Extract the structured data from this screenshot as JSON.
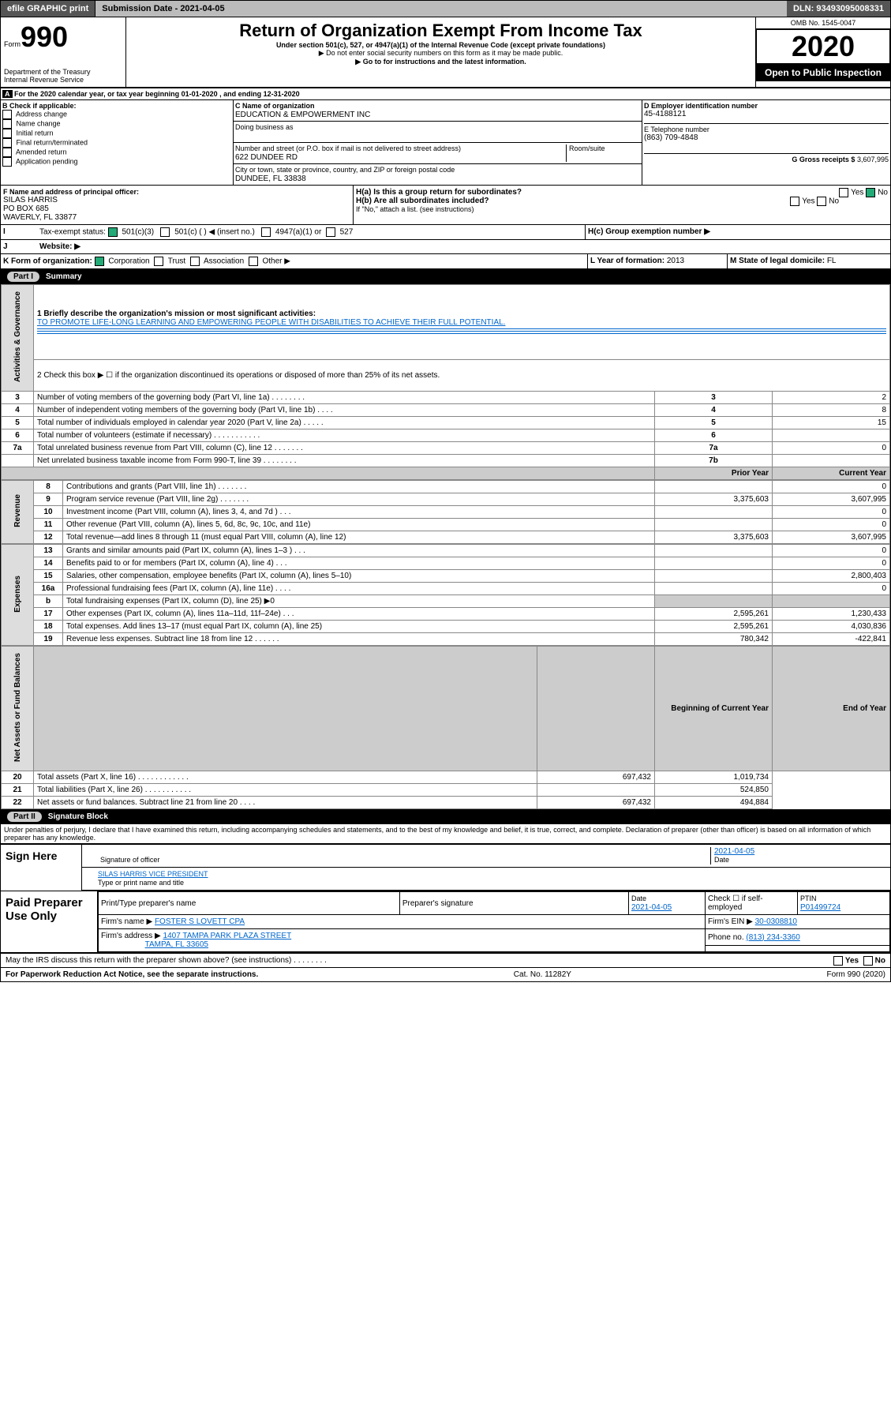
{
  "top": {
    "efile": "efile GRAPHIC print",
    "subLbl": "Submission Date - 2021-04-05",
    "dln": "DLN: 93493095008331"
  },
  "hdr": {
    "form": "Form",
    "n990": "990",
    "title": "Return of Organization Exempt From Income Tax",
    "sub": "Under section 501(c), 527, or 4947(a)(1) of the Internal Revenue Code (except private foundations)",
    "warn": "▶ Do not enter social security numbers on this form as it may be made public.",
    "go": "▶ Go to ",
    "golink": "www.irs.gov/Form990",
    "go2": " for instructions and the latest information.",
    "dept": "Department of the Treasury",
    "irs": "Internal Revenue Service",
    "omb": "OMB No. 1545-0047",
    "year": "2020",
    "open": "Open to Public Inspection"
  },
  "A": {
    "line": "For the 2020 calendar year, or tax year beginning 01-01-2020    , and ending 12-31-2020"
  },
  "B": {
    "hdr": "B Check if applicable:",
    "items": [
      "Address change",
      "Name change",
      "Initial return",
      "Final return/terminated",
      "Amended return",
      "Application pending"
    ]
  },
  "C": {
    "nameLbl": "C Name of organization",
    "name": "EDUCATION & EMPOWERMENT INC",
    "dba": "Doing business as",
    "addrLbl": "Number and street (or P.O. box if mail is not delivered to street address)",
    "room": "Room/suite",
    "addr": "622 DUNDEE RD",
    "cityLbl": "City or town, state or province, country, and ZIP or foreign postal code",
    "city": "DUNDEE, FL  33838"
  },
  "D": {
    "lbl": "D Employer identification number",
    "ein": "45-4188121"
  },
  "E": {
    "lbl": "E Telephone number",
    "tel": "(863) 709-4848"
  },
  "G": {
    "lbl": "G Gross receipts $",
    "amt": "3,607,995"
  },
  "F": {
    "lbl": "F  Name and address of principal officer:",
    "n": "SILAS HARRIS",
    "a1": "PO BOX 685",
    "a2": "WAVERLY, FL  33877"
  },
  "H": {
    "a": "H(a)  Is this a group return for subordinates?",
    "b": "H(b)  Are all subordinates included?",
    "note": "If \"No,\" attach a list. (see instructions)",
    "c": "H(c)  Group exemption number ▶",
    "yes": "Yes",
    "no": "No"
  },
  "I": {
    "lbl": "Tax-exempt status:",
    "o1": "501(c)(3)",
    "o2": "501(c) (  ) ◀ (insert no.)",
    "o3": "4947(a)(1) or",
    "o4": "527"
  },
  "J": {
    "lbl": "Website: ▶"
  },
  "K": {
    "lbl": "K Form of organization:",
    "c": "Corporation",
    "t": "Trust",
    "a": "Association",
    "o": "Other ▶"
  },
  "L": {
    "lbl": "L Year of formation:",
    "v": "2013"
  },
  "M": {
    "lbl": "M State of legal domicile:",
    "v": "FL"
  },
  "P1": {
    "title": "Summary",
    "q1": "1  Briefly describe the organization's mission or most significant activities:",
    "mis": "TO PROMOTE LIFE-LONG LEARNING AND EMPOWERING PEOPLE WITH DISABILITIES TO ACHIEVE THEIR FULL POTENTIAL.",
    "q2": "2   Check this box ▶ ☐  if the organization discontinued its operations or disposed of more than 25% of its net assets.",
    "rows": [
      {
        "n": "3",
        "t": "Number of voting members of the governing body (Part VI, line 1a)   .    .    .    .    .    .    .    .",
        "c": "3",
        "v": "2"
      },
      {
        "n": "4",
        "t": "Number of independent voting members of the governing body (Part VI, line 1b)   .    .    .    .",
        "c": "4",
        "v": "8"
      },
      {
        "n": "5",
        "t": "Total number of individuals employed in calendar year 2020 (Part V, line 2a)   .    .    .    .    .",
        "c": "5",
        "v": "15"
      },
      {
        "n": "6",
        "t": "Total number of volunteers (estimate if necessary)   .    .    .    .    .    .    .    .    .    .    .",
        "c": "6",
        "v": ""
      },
      {
        "n": "7a",
        "t": "Total unrelated business revenue from Part VIII, column (C), line 12   .    .    .    .    .    .    .",
        "c": "7a",
        "v": "0"
      },
      {
        "n": "",
        "t": "Net unrelated business taxable income from Form 990-T, line 39   .    .    .    .    .    .    .    .",
        "c": "7b",
        "v": ""
      }
    ],
    "py": "Prior Year",
    "cy": "Current Year",
    "rev": [
      {
        "n": "8",
        "t": "Contributions and grants (Part VIII, line 1h)   .    .    .    .    .    .    .",
        "p": "",
        "c": "0"
      },
      {
        "n": "9",
        "t": "Program service revenue (Part VIII, line 2g)   .    .    .    .    .    .    .",
        "p": "3,375,603",
        "c": "3,607,995"
      },
      {
        "n": "10",
        "t": "Investment income (Part VIII, column (A), lines 3, 4, and 7d )   .    .    .",
        "p": "",
        "c": "0"
      },
      {
        "n": "11",
        "t": "Other revenue (Part VIII, column (A), lines 5, 6d, 8c, 9c, 10c, and 11e)",
        "p": "",
        "c": "0"
      },
      {
        "n": "12",
        "t": "Total revenue—add lines 8 through 11 (must equal Part VIII, column (A), line 12)",
        "p": "3,375,603",
        "c": "3,607,995"
      }
    ],
    "exp": [
      {
        "n": "13",
        "t": "Grants and similar amounts paid (Part IX, column (A), lines 1–3 )   .    .    .",
        "p": "",
        "c": "0"
      },
      {
        "n": "14",
        "t": "Benefits paid to or for members (Part IX, column (A), line 4)   .    .    .",
        "p": "",
        "c": "0"
      },
      {
        "n": "15",
        "t": "Salaries, other compensation, employee benefits (Part IX, column (A), lines 5–10)",
        "p": "",
        "c": "2,800,403"
      },
      {
        "n": "16a",
        "t": "Professional fundraising fees (Part IX, column (A), line 11e)   .    .    .    .",
        "p": "",
        "c": "0"
      },
      {
        "n": "b",
        "t": "Total fundraising expenses (Part IX, column (D), line 25) ▶0",
        "p": "grey",
        "c": "grey"
      },
      {
        "n": "17",
        "t": "Other expenses (Part IX, column (A), lines 11a–11d, 11f–24e)   .    .    .",
        "p": "2,595,261",
        "c": "1,230,433"
      },
      {
        "n": "18",
        "t": "Total expenses. Add lines 13–17 (must equal Part IX, column (A), line 25)",
        "p": "2,595,261",
        "c": "4,030,836"
      },
      {
        "n": "19",
        "t": "Revenue less expenses. Subtract line 18 from line 12   .    .    .    .    .    .",
        "p": "780,342",
        "c": "-422,841"
      }
    ],
    "by": "Beginning of Current Year",
    "ey": "End of Year",
    "na": [
      {
        "n": "20",
        "t": "Total assets (Part X, line 16)   .    .    .    .    .    .    .    .    .    .    .    .",
        "p": "697,432",
        "c": "1,019,734"
      },
      {
        "n": "21",
        "t": "Total liabilities (Part X, line 26)   .    .    .    .    .    .    .    .    .    .    .",
        "p": "",
        "c": "524,850"
      },
      {
        "n": "22",
        "t": "Net assets or fund balances. Subtract line 21 from line 20   .    .    .    .",
        "p": "697,432",
        "c": "494,884"
      }
    ],
    "tabs": {
      "ag": "Activities & Governance",
      "rv": "Revenue",
      "ex": "Expenses",
      "na": "Net Assets or\nFund Balances"
    }
  },
  "P2": {
    "title": "Signature Block",
    "decl": "Under penalties of perjury, I declare that I have examined this return, including accompanying schedules and statements, and to the best of my knowledge and belief, it is true, correct, and complete. Declaration of preparer (other than officer) is based on all information of which preparer has any knowledge.",
    "sign": "Sign Here",
    "sigoff": "Signature of officer",
    "date": "2021-04-05",
    "dateLbl": "Date",
    "name": "SILAS HARRIS  VICE PRESIDENT",
    "nameLbl": "Type or print name and title"
  },
  "prep": {
    "title": "Paid Preparer Use Only",
    "h": {
      "a": "Print/Type preparer's name",
      "b": "Preparer's signature",
      "c": "Date",
      "d": "Check ☐ if self-employed",
      "e": "PTIN"
    },
    "r1": {
      "c": "2021-04-05",
      "e": "P01499724"
    },
    "r2": {
      "l": "Firm's name     ▶",
      "v": "FOSTER S LOVETT CPA",
      "l2": "Firm's EIN ▶",
      "v2": "30-0308810"
    },
    "r3": {
      "l": "Firm's address ▶",
      "v": "1407 TAMPA PARK PLAZA STREET",
      "l2": "Phone no.",
      "v2": "(813) 234-3360"
    },
    "r3b": "TAMPA, FL  33605"
  },
  "tail": {
    "q": "May the IRS discuss this return with the preparer shown above? (see instructions)    .    .    .    .    .    .    .    .",
    "yes": "Yes",
    "no": "No",
    "pra": "For Paperwork Reduction Act Notice, see the separate instructions.",
    "cat": "Cat. No. 11282Y",
    "f": "Form 990 (2020)"
  }
}
